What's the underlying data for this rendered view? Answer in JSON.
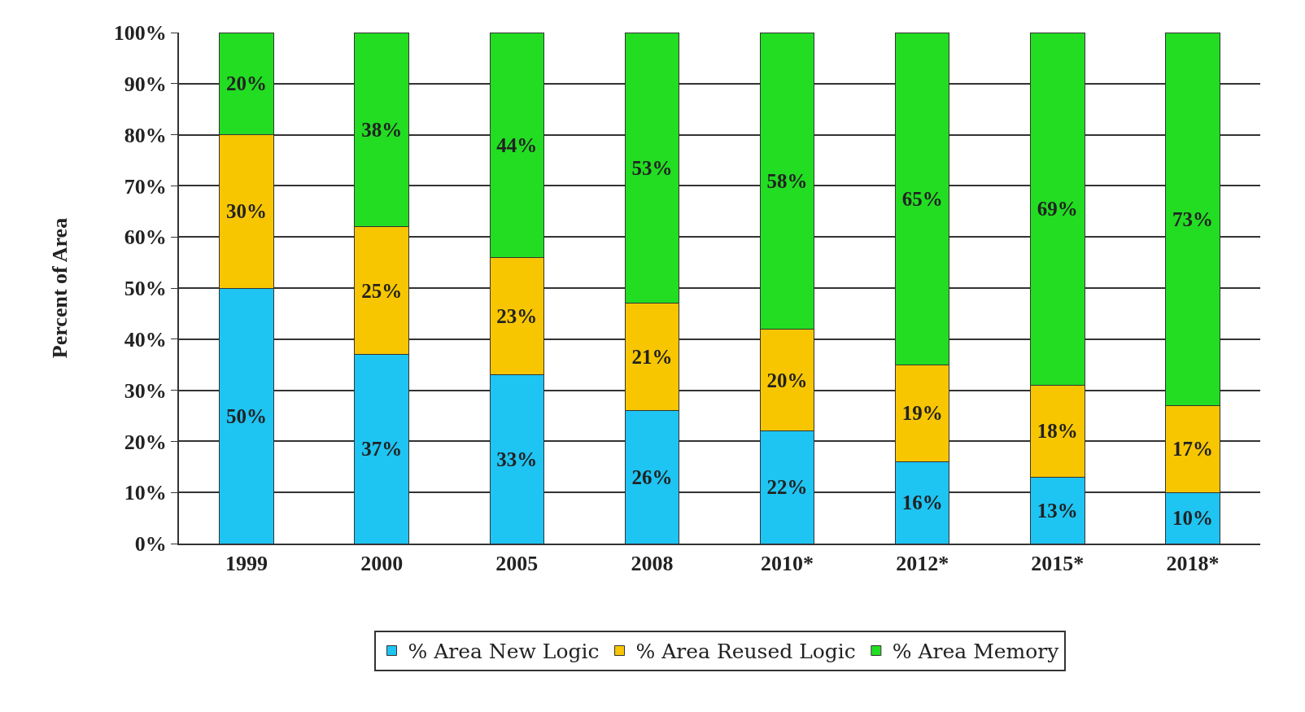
{
  "chart_data": {
    "type": "bar",
    "stacked": true,
    "ylabel": "Percent of Area",
    "categories": [
      "1999",
      "2000",
      "2005",
      "2008",
      "2010*",
      "2012*",
      "2015*",
      "2018*"
    ],
    "series": [
      {
        "name": "% Area New Logic",
        "color": "#1ec4f2",
        "values": [
          50,
          37,
          33,
          26,
          22,
          16,
          13,
          10
        ],
        "value_labels": [
          "50%",
          "37%",
          "33%",
          "26%",
          "22%",
          "16%",
          "13%",
          "10%"
        ]
      },
      {
        "name": "% Area Reused Logic",
        "color": "#f7c600",
        "values": [
          30,
          25,
          23,
          21,
          20,
          19,
          18,
          17
        ],
        "value_labels": [
          "30%",
          "25%",
          "23%",
          "21%",
          "20%",
          "19%",
          "18%",
          "17%"
        ]
      },
      {
        "name": "% Area Memory",
        "color": "#22dd22",
        "values": [
          20,
          38,
          44,
          53,
          58,
          65,
          69,
          73
        ],
        "value_labels": [
          "20%",
          "38%",
          "44%",
          "53%",
          "58%",
          "65%",
          "69%",
          "73%"
        ]
      }
    ],
    "ylim": [
      0,
      100
    ],
    "yticks": [
      {
        "value": 0,
        "label": "0%"
      },
      {
        "value": 10,
        "label": "10%"
      },
      {
        "value": 20,
        "label": "20%"
      },
      {
        "value": 30,
        "label": "30%"
      },
      {
        "value": 40,
        "label": "40%"
      },
      {
        "value": 50,
        "label": "50%"
      },
      {
        "value": 60,
        "label": "60%"
      },
      {
        "value": 70,
        "label": "70%"
      },
      {
        "value": 80,
        "label": "80%"
      },
      {
        "value": 90,
        "label": "90%"
      },
      {
        "value": 100,
        "label": "100%"
      }
    ],
    "grid": "y",
    "legend": "bottom"
  }
}
